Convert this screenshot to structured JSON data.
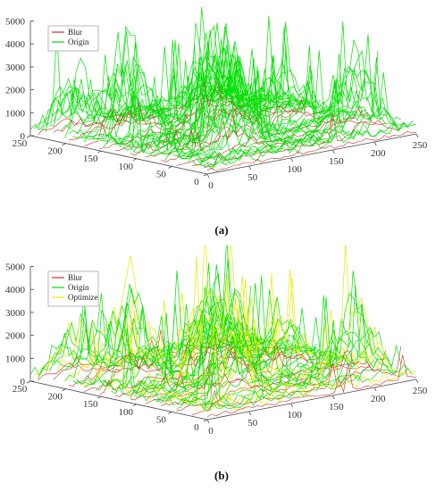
{
  "chart_data": [
    {
      "type": "area",
      "caption": "(a)",
      "series": [
        {
          "name": "Blur",
          "color": "#d62728"
        },
        {
          "name": "Origin",
          "color": "#00e000"
        }
      ],
      "zlim": [
        0,
        5000
      ],
      "z_ticks": [
        0,
        1000,
        2000,
        3000,
        4000,
        5000
      ],
      "x_ticks": [
        0,
        50,
        100,
        150,
        200,
        250
      ],
      "y_ticks": [
        0,
        50,
        100,
        150,
        200,
        250
      ],
      "legend_position": "top-left",
      "grid": false
    },
    {
      "type": "area",
      "caption": "(b)",
      "series": [
        {
          "name": "Blur",
          "color": "#d62728"
        },
        {
          "name": "Origin",
          "color": "#00e000"
        },
        {
          "name": "Optimize",
          "color": "#e8e800"
        }
      ],
      "zlim": [
        0,
        5000
      ],
      "z_ticks": [
        0,
        1000,
        2000,
        3000,
        4000,
        5000
      ],
      "x_ticks": [
        0,
        50,
        100,
        150,
        200,
        250
      ],
      "y_ticks": [
        0,
        50,
        100,
        150,
        200,
        250
      ],
      "legend_position": "top-left",
      "grid": false
    }
  ]
}
